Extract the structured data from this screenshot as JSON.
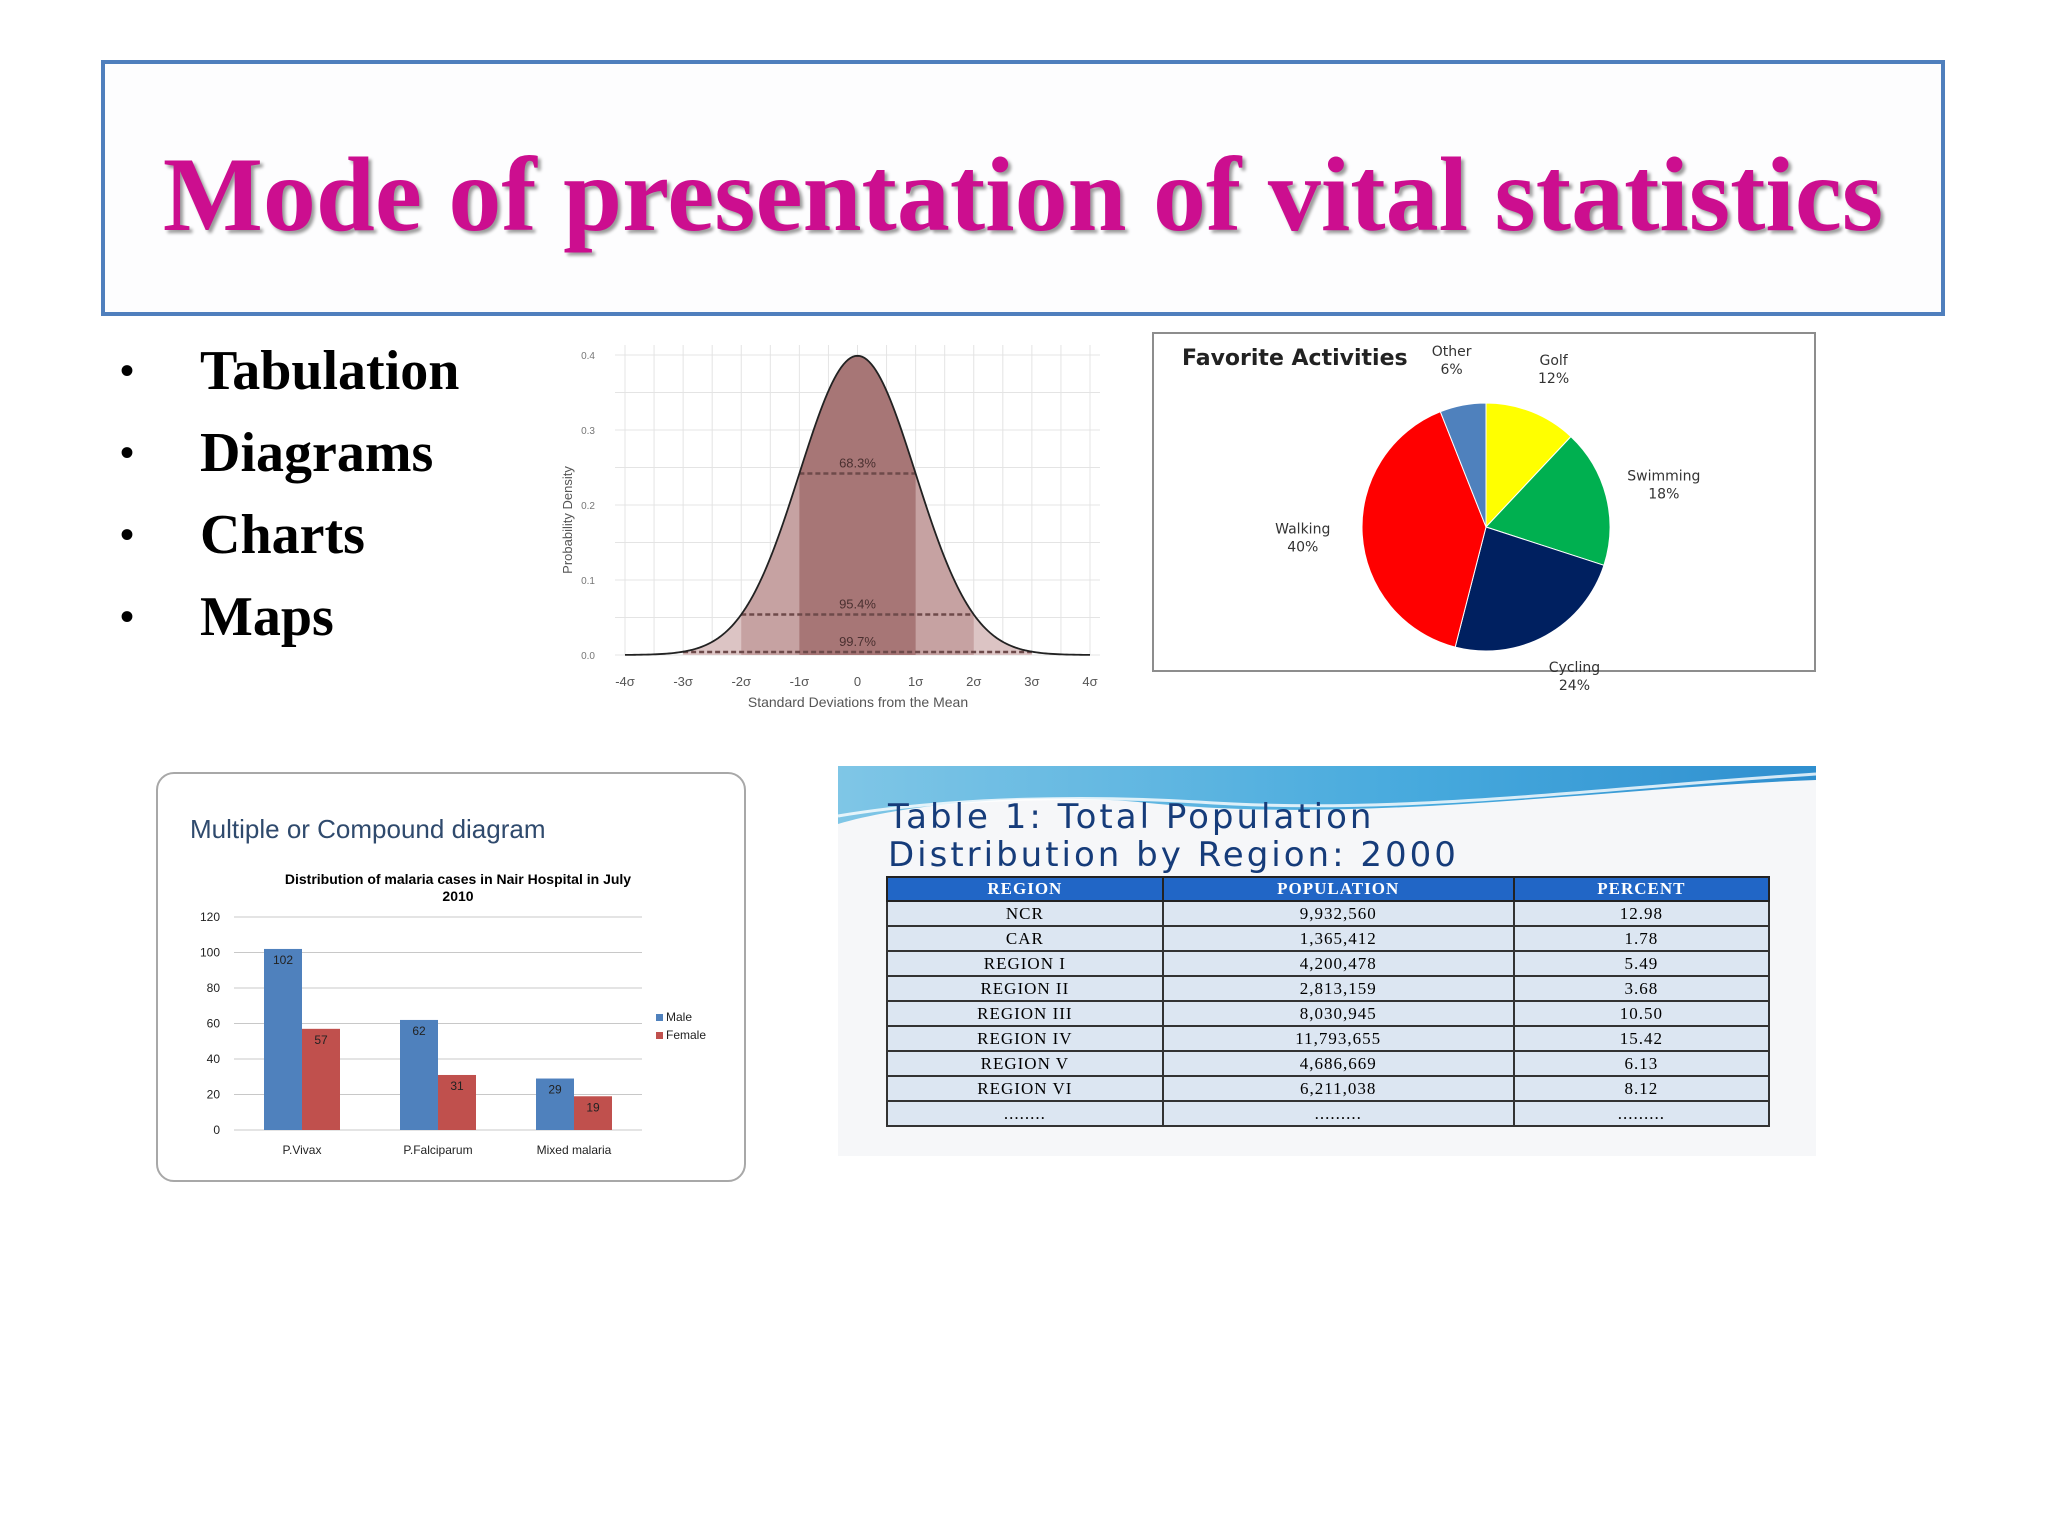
{
  "slide": {
    "title": "Mode of presentation of vital statistics",
    "bullets": [
      {
        "marker": "•",
        "label": "Tabulation"
      },
      {
        "marker": "•",
        "label": "Diagrams"
      },
      {
        "marker": "•",
        "label": "Charts"
      },
      {
        "marker": "•",
        "label": "Maps"
      }
    ]
  },
  "colors": {
    "title": "#cc0e8f",
    "title_border": "#4f7fbd",
    "bell_fill": "#b08080",
    "male": "#4f81bd",
    "female": "#c0504d",
    "table_header": "#2166c6",
    "table_cell": "#dce6f2"
  },
  "chart_data": [
    {
      "type": "area",
      "title": "",
      "xlabel": "Standard Deviations from the Mean",
      "ylabel": "Probability Density",
      "xlim": [
        -4,
        4
      ],
      "ylim": [
        0,
        0.4
      ],
      "x_ticks": [
        "-4σ",
        "-3σ",
        "-2σ",
        "-1σ",
        "0",
        "1σ",
        "2σ",
        "3σ",
        "4σ"
      ],
      "y_ticks": [
        "0.0",
        "0.1",
        "0.2",
        "0.3",
        "0.4"
      ],
      "grid": true,
      "curve": "normal density, mean 0, sd 1",
      "bands": [
        {
          "range": [
            -1,
            1
          ],
          "label": "68.3%",
          "y": 0.242
        },
        {
          "range": [
            -2,
            2
          ],
          "label": "95.4%",
          "y": 0.054
        },
        {
          "range": [
            -3,
            3
          ],
          "label": "99.7%",
          "y": 0.004
        }
      ]
    },
    {
      "type": "pie",
      "title": "Favorite Activities",
      "slices": [
        {
          "label": "Golf",
          "value": 12,
          "display": "12%",
          "color": "#ffff00"
        },
        {
          "label": "Swimming",
          "value": 18,
          "display": "18%",
          "color": "#00b050"
        },
        {
          "label": "Cycling",
          "value": 24,
          "display": "24%",
          "color": "#002060"
        },
        {
          "label": "Walking",
          "value": 40,
          "display": "40%",
          "color": "#ff0000"
        },
        {
          "label": "Other",
          "value": 6,
          "display": "6%",
          "color": "#4f81bd"
        }
      ]
    },
    {
      "type": "bar",
      "heading": "Multiple or Compound diagram",
      "title": "Distribution of malaria cases in Nair Hospital in July 2010",
      "categories": [
        "P.Vivax",
        "P.Falciparum",
        "Mixed malaria"
      ],
      "series": [
        {
          "name": "Male",
          "values": [
            102,
            62,
            29
          ]
        },
        {
          "name": "Female",
          "values": [
            57,
            31,
            19
          ]
        }
      ],
      "ylim": [
        0,
        120
      ],
      "y_ticks": [
        0,
        20,
        40,
        60,
        80,
        100,
        120
      ],
      "grid": true,
      "legend": "right"
    },
    {
      "type": "table",
      "title_lines": [
        "Table 1: Total Population",
        "Distribution by Region: 2000"
      ],
      "columns": [
        "REGION",
        "POPULATION",
        "PERCENT"
      ],
      "rows": [
        [
          "NCR",
          "9,932,560",
          "12.98"
        ],
        [
          "CAR",
          "1,365,412",
          "1.78"
        ],
        [
          "REGION I",
          "4,200,478",
          "5.49"
        ],
        [
          "REGION II",
          "2,813,159",
          "3.68"
        ],
        [
          "REGION III",
          "8,030,945",
          "10.50"
        ],
        [
          "REGION IV",
          "11,793,655",
          "15.42"
        ],
        [
          "REGION V",
          "4,686,669",
          "6.13"
        ],
        [
          "REGION VI",
          "6,211,038",
          "8.12"
        ],
        [
          "........",
          ".........",
          "........."
        ]
      ]
    }
  ]
}
